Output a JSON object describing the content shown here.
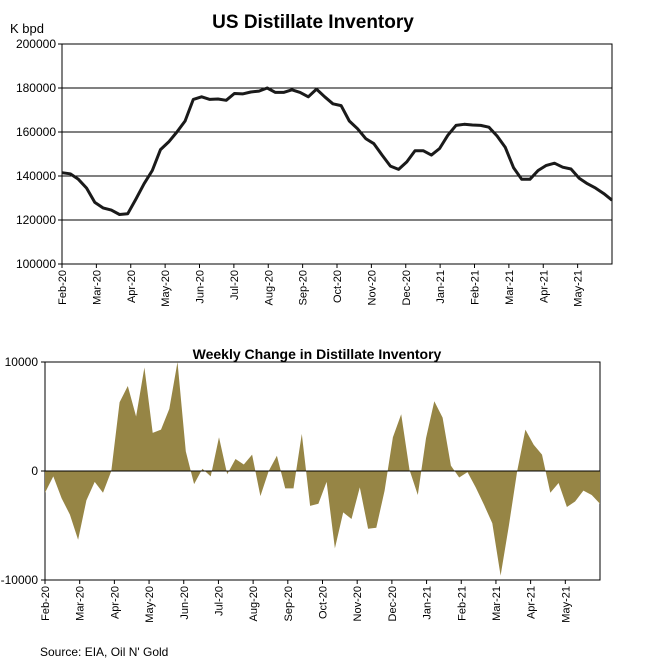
{
  "source": "Source: EIA, Oil N' Gold",
  "chart_data": [
    {
      "type": "line",
      "title": "US Distillate Inventory",
      "ylabel": "K bpd",
      "ylim": [
        100000,
        200000
      ],
      "yticks": [
        "100000",
        "120000",
        "140000",
        "160000",
        "180000",
        "200000"
      ],
      "xticks": [
        "Feb-20",
        "Mar-20",
        "Apr-20",
        "May-20",
        "Jun-20",
        "Jul-20",
        "Aug-20",
        "Sep-20",
        "Oct-20",
        "Nov-20",
        "Dec-20",
        "Jan-21",
        "Feb-21",
        "Mar-21",
        "Apr-21",
        "May-21"
      ],
      "grid": "horizontal",
      "line_color": "#1a1a1a",
      "series": [
        {
          "values": [
            141500,
            141000,
            138500,
            134500,
            128000,
            125500,
            124500,
            122500,
            122800,
            129500,
            136500,
            142500,
            152000,
            155500,
            160000,
            165000,
            174800,
            176000,
            174800,
            175000,
            174400,
            177500,
            177300,
            178200,
            178600,
            180000,
            178000,
            178000,
            179200,
            178000,
            176000,
            179500,
            176000,
            172800,
            172000,
            165000,
            161500,
            157000,
            154700,
            149500,
            144500,
            143000,
            146400,
            151500,
            151500,
            149500,
            152500,
            158500,
            163000,
            163500,
            163200,
            163000,
            162200,
            158200,
            153000,
            143800,
            138500,
            138500,
            142500,
            144800,
            145800,
            144000,
            143200,
            139000,
            136500,
            134500,
            132000,
            129000
          ]
        }
      ]
    },
    {
      "type": "area",
      "title": "Weekly Change in Distillate Inventory",
      "ylim": [
        -10000,
        10000
      ],
      "yticks": [
        "-10000",
        "0",
        "10000"
      ],
      "xticks": [
        "Feb-20",
        "Mar-20",
        "Apr-20",
        "May-20",
        "Jun-20",
        "Jul-20",
        "Aug-20",
        "Sep-20",
        "Oct-20",
        "Nov-20",
        "Dec-20",
        "Jan-21",
        "Feb-21",
        "Mar-21",
        "Apr-21",
        "May-21"
      ],
      "fill_color": "#968545",
      "series": [
        {
          "values": [
            -2000,
            -500,
            -2500,
            -4000,
            -6300,
            -2700,
            -1000,
            -2000,
            0,
            6300,
            7800,
            5000,
            9500,
            3500,
            3800,
            5700,
            10000,
            1800,
            -1200,
            200,
            -500,
            3100,
            -300,
            1100,
            600,
            1500,
            -2300,
            0,
            1400,
            -1600,
            -1600,
            3400,
            -3200,
            -3000,
            -1000,
            -7100,
            -3800,
            -4400,
            -1500,
            -5300,
            -5200,
            -1800,
            3100,
            5200,
            100,
            -2200,
            3000,
            6400,
            4900,
            500,
            -600,
            -100,
            -1500,
            -3100,
            -4800,
            -9600,
            -5000,
            0,
            3800,
            2400,
            1500,
            -2000,
            -1100,
            -3300,
            -2800,
            -1800,
            -2200,
            -3000
          ]
        }
      ]
    }
  ]
}
